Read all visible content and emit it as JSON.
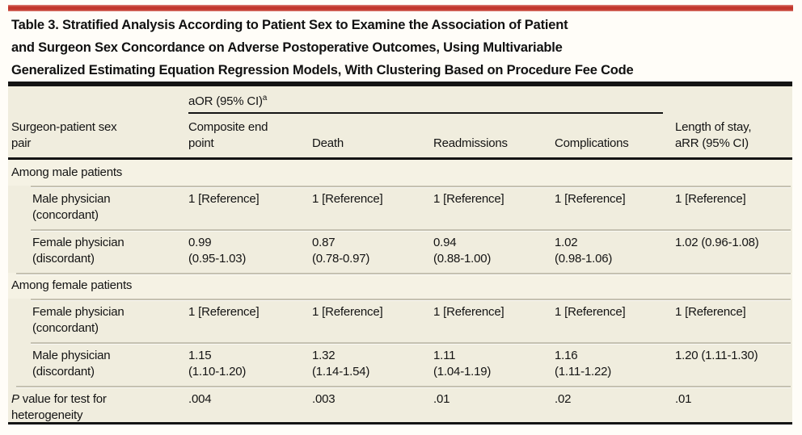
{
  "colors": {
    "accent_red": "#c2372c",
    "panel_bg": "#f0edde",
    "section_bg": "#f5f2e4",
    "rule_gray": "#c5c1b1",
    "line_black": "#141414"
  },
  "title": {
    "lines": [
      "Table 3. Stratified Analysis According to Patient Sex to Examine the Association of Patient",
      "and Surgeon Sex Concordance on Adverse Postoperative Outcomes, Using Multivariable",
      "Generalized Estimating Equation Regression Models, With Clustering Based on Procedure Fee Code"
    ]
  },
  "table": {
    "header": {
      "col1_line1": "Surgeon-patient sex",
      "col1_line2": "pair",
      "group_label": "aOR (95% CI)",
      "group_sup": "a",
      "col2_line1": "Composite end",
      "col2_line2": "point",
      "col3": "Death",
      "col4": "Readmissions",
      "col5": "Complications",
      "col6_line1": "Length of stay,",
      "col6_line2": "aRR (95% CI)"
    },
    "rows": [
      {
        "type": "section",
        "label": "Among male patients"
      },
      {
        "type": "data",
        "label1": "Male physician",
        "label2": "(concordant)",
        "v1": "1 [Reference]",
        "ci1": "",
        "v2": "1 [Reference]",
        "ci2": "",
        "v3": "1 [Reference]",
        "ci3": "",
        "v4": "1 [Reference]",
        "ci4": "",
        "v5": "1 [Reference]",
        "ci5": ""
      },
      {
        "type": "data",
        "label1": "Female physician",
        "label2": "(discordant)",
        "v1": "0.99",
        "ci1": "(0.95-1.03)",
        "v2": "0.87",
        "ci2": "(0.78-0.97)",
        "v3": "0.94",
        "ci3": "(0.88-1.00)",
        "v4": "1.02",
        "ci4": "(0.98-1.06)",
        "v5": "1.02 (0.96-1.08)",
        "ci5": ""
      },
      {
        "type": "section",
        "label": "Among female patients"
      },
      {
        "type": "data",
        "label1": "Female physician",
        "label2": "(concordant)",
        "v1": "1 [Reference]",
        "ci1": "",
        "v2": "1 [Reference]",
        "ci2": "",
        "v3": "1 [Reference]",
        "ci3": "",
        "v4": "1 [Reference]",
        "ci4": "",
        "v5": "1 [Reference]",
        "ci5": ""
      },
      {
        "type": "data",
        "label1": "Male physician",
        "label2": "(discordant)",
        "v1": "1.15",
        "ci1": "(1.10-1.20)",
        "v2": "1.32",
        "ci2": "(1.14-1.54)",
        "v3": "1.11",
        "ci3": "(1.04-1.19)",
        "v4": "1.16",
        "ci4": "(1.11-1.22)",
        "v5": "1.20 (1.11-1.30)",
        "ci5": ""
      },
      {
        "type": "p",
        "p_symbol": "P",
        "label1_rest": "value for test for",
        "label2": "heterogeneity",
        "v1": ".004",
        "v2": ".003",
        "v3": ".01",
        "v4": ".02",
        "v5": ".01"
      }
    ]
  }
}
